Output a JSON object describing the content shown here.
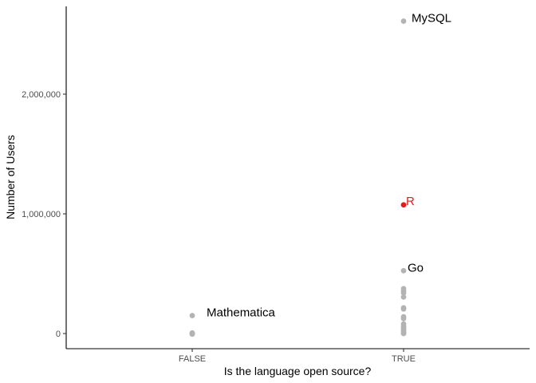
{
  "chart_data": {
    "type": "scatter",
    "xlabel": "Is the language open source?",
    "ylabel": "Number of Users",
    "categories": [
      "FALSE",
      "TRUE"
    ],
    "ylim": [
      -125000,
      2740000
    ],
    "yticks": [
      0,
      1000000,
      2000000
    ],
    "ytick_labels": [
      "0",
      "1,000,000",
      "2,000,000"
    ],
    "grid": false,
    "legend": "none",
    "colors": {
      "default": "#b3b3b3",
      "highlight": "#e41a1c",
      "text": "#000000"
    },
    "points": [
      {
        "x": "FALSE",
        "y": 150000,
        "label": "Mathematica"
      },
      {
        "x": "FALSE",
        "y": 5000
      },
      {
        "x": "FALSE",
        "y": 0
      },
      {
        "x": "FALSE",
        "y": -5000
      },
      {
        "x": "TRUE",
        "y": 2610000,
        "label": "MySQL"
      },
      {
        "x": "TRUE",
        "y": 1075000,
        "label": "R",
        "highlight": true
      },
      {
        "x": "TRUE",
        "y": 525000,
        "label": "Go"
      },
      {
        "x": "TRUE",
        "y": 375000
      },
      {
        "x": "TRUE",
        "y": 355000
      },
      {
        "x": "TRUE",
        "y": 340000
      },
      {
        "x": "TRUE",
        "y": 305000
      },
      {
        "x": "TRUE",
        "y": 215000
      },
      {
        "x": "TRUE",
        "y": 205000
      },
      {
        "x": "TRUE",
        "y": 140000
      },
      {
        "x": "TRUE",
        "y": 125000
      },
      {
        "x": "TRUE",
        "y": 80000
      },
      {
        "x": "TRUE",
        "y": 60000
      },
      {
        "x": "TRUE",
        "y": 45000
      },
      {
        "x": "TRUE",
        "y": 30000
      },
      {
        "x": "TRUE",
        "y": 18000
      },
      {
        "x": "TRUE",
        "y": 8000
      },
      {
        "x": "TRUE",
        "y": 0
      }
    ]
  }
}
